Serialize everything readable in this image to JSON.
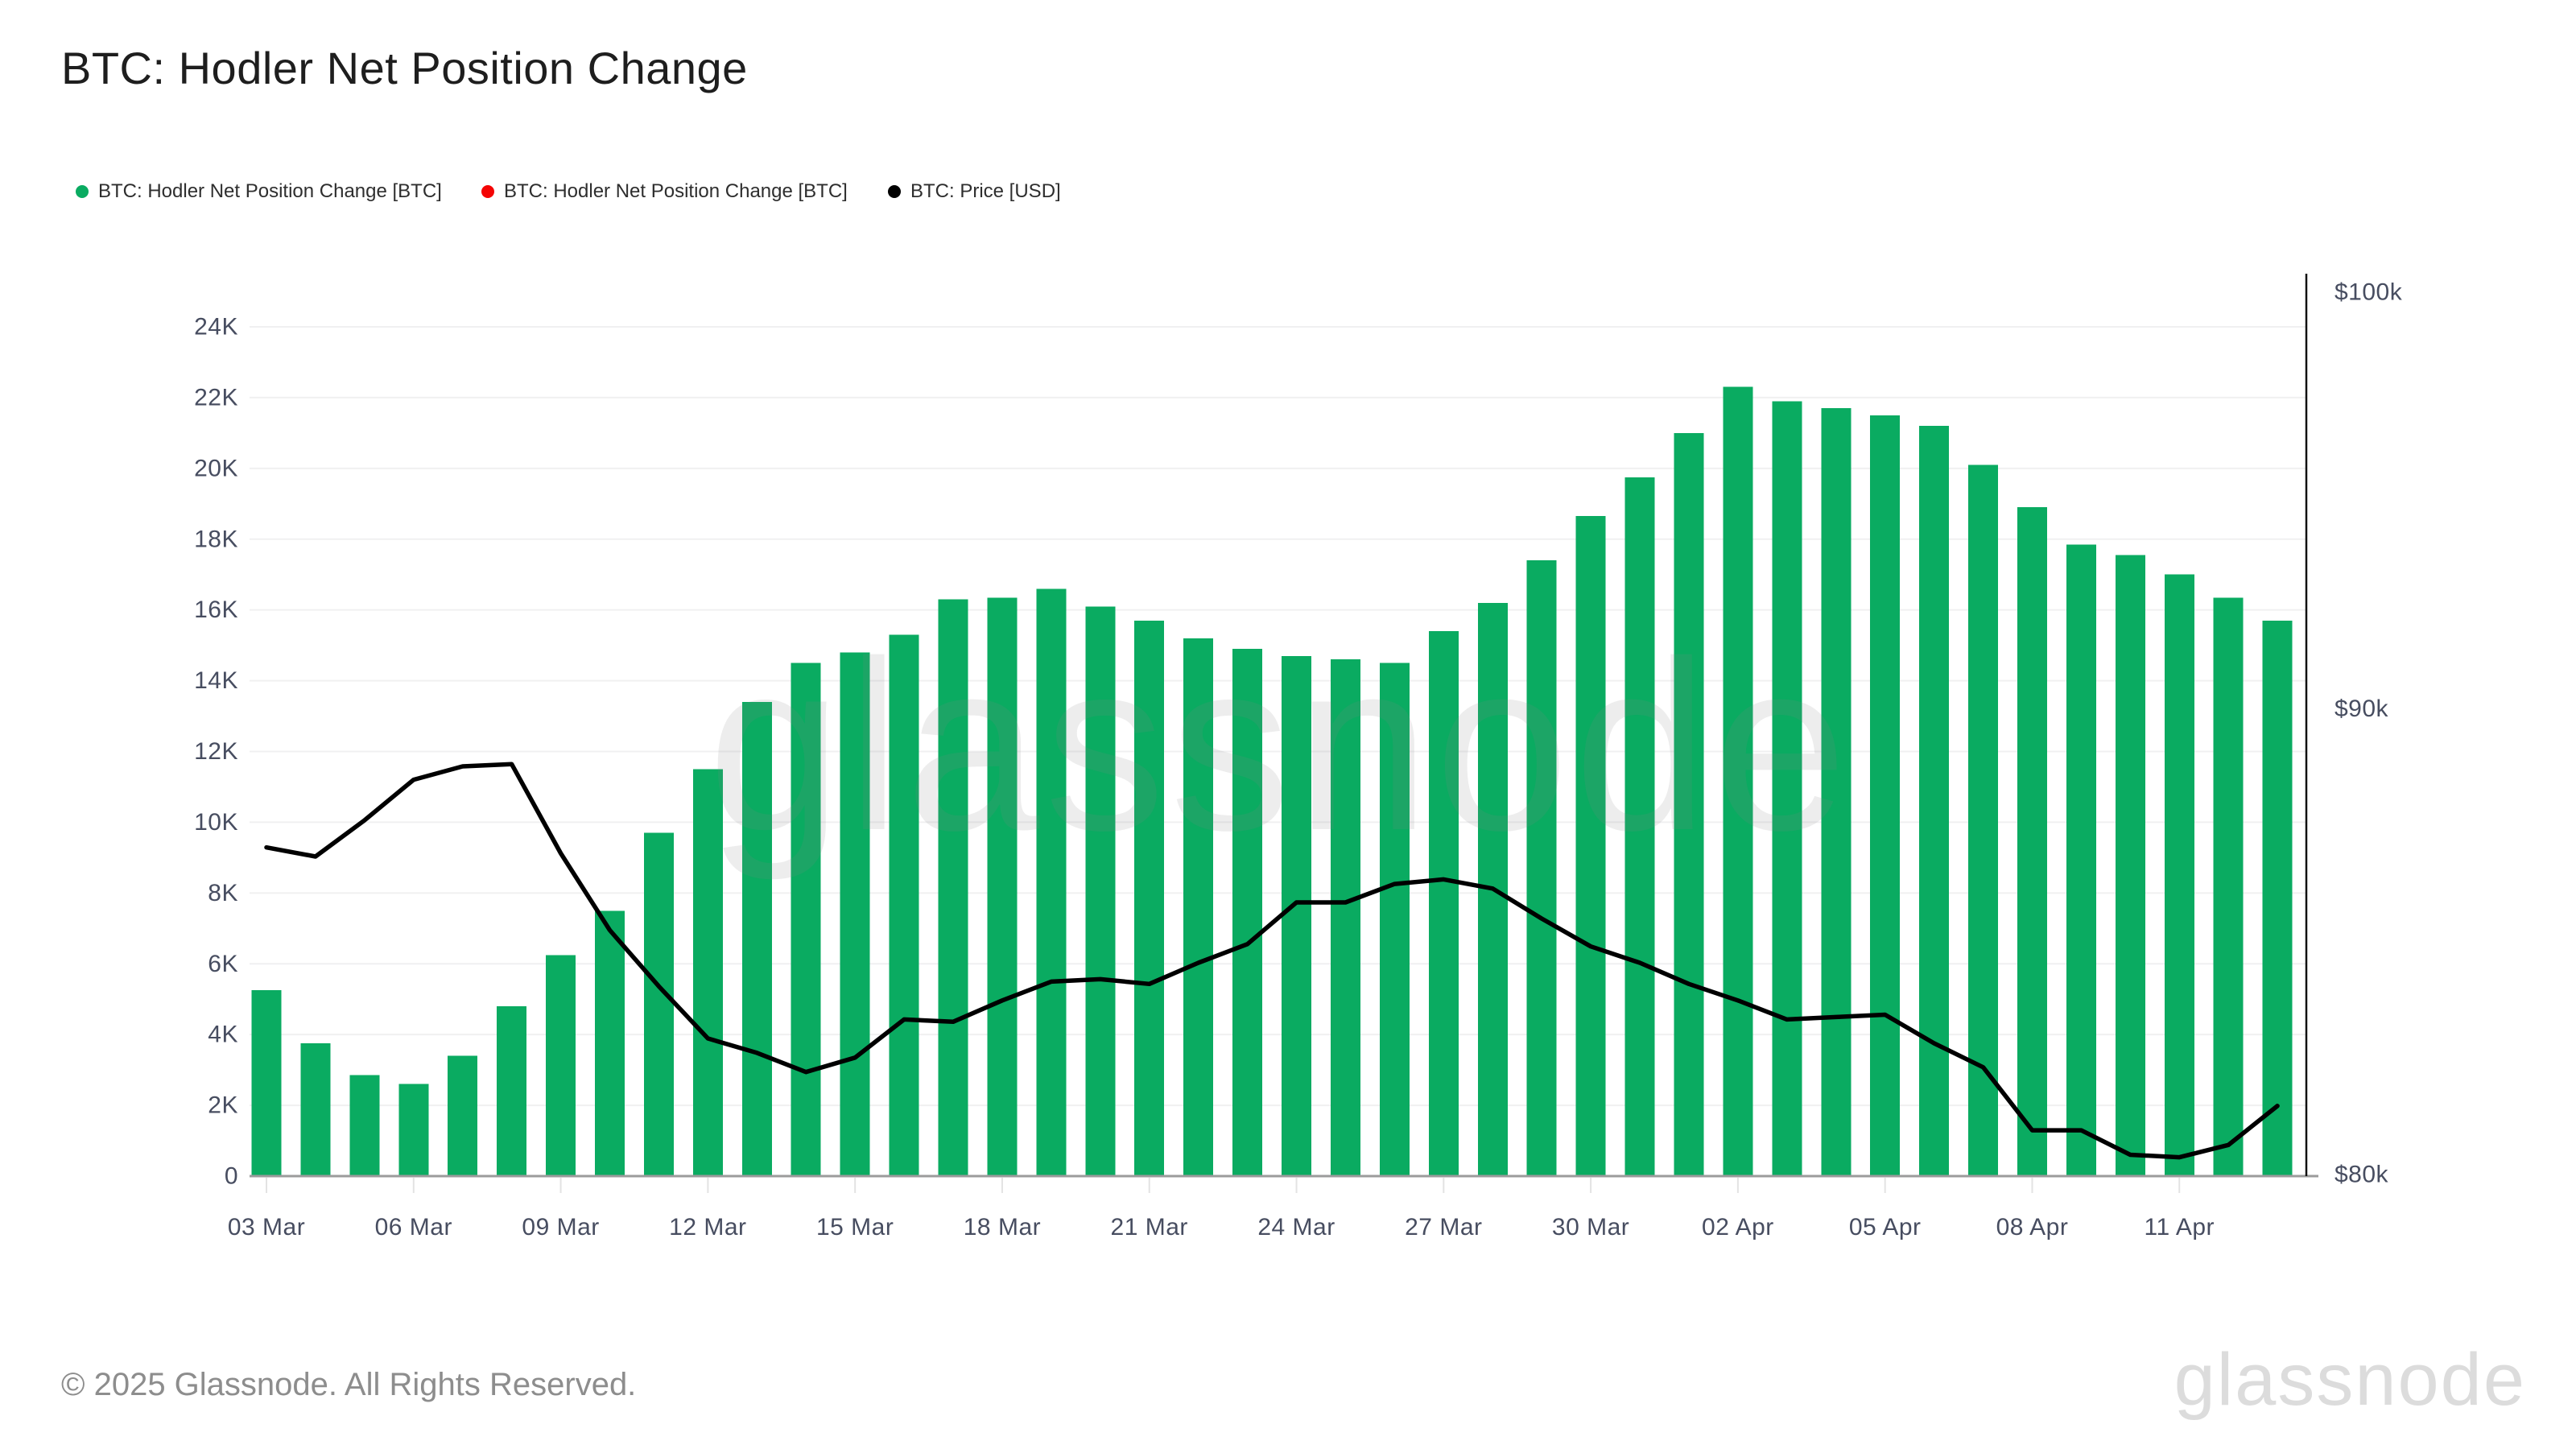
{
  "title": "BTC: Hodler Net Position Change",
  "legend": [
    {
      "label": "BTC: Hodler Net Position Change [BTC]",
      "color": "#0aab61"
    },
    {
      "label": "BTC: Hodler Net Position Change [BTC]",
      "color": "#f40404"
    },
    {
      "label": "BTC: Price [USD]",
      "color": "#000000"
    }
  ],
  "watermark": "glassnode",
  "footer": {
    "copyright": "© 2025 Glassnode. All Rights Reserved.",
    "brand": "glassnode"
  },
  "chart_data": {
    "type": "bar",
    "title": "BTC: Hodler Net Position Change",
    "categories": [
      "03 Mar",
      "04 Mar",
      "05 Mar",
      "06 Mar",
      "07 Mar",
      "08 Mar",
      "09 Mar",
      "10 Mar",
      "11 Mar",
      "12 Mar",
      "13 Mar",
      "14 Mar",
      "15 Mar",
      "16 Mar",
      "17 Mar",
      "18 Mar",
      "19 Mar",
      "20 Mar",
      "21 Mar",
      "22 Mar",
      "23 Mar",
      "24 Mar",
      "25 Mar",
      "26 Mar",
      "27 Mar",
      "28 Mar",
      "29 Mar",
      "30 Mar",
      "31 Mar",
      "01 Apr",
      "02 Apr",
      "03 Apr",
      "04 Apr",
      "05 Apr",
      "06 Apr",
      "07 Apr",
      "08 Apr",
      "09 Apr",
      "10 Apr",
      "11 Apr",
      "12 Apr",
      "13 Apr"
    ],
    "series": [
      {
        "name": "BTC: Hodler Net Position Change [BTC]",
        "type": "bar",
        "unit": "BTC",
        "color": "#0aab61",
        "values": [
          5250,
          3750,
          2850,
          2600,
          3400,
          4800,
          6250,
          7500,
          9700,
          11500,
          13400,
          14500,
          14800,
          15300,
          16300,
          16350,
          16600,
          16100,
          15700,
          15200,
          14900,
          14700,
          14600,
          14500,
          15400,
          16200,
          17400,
          18650,
          19750,
          21000,
          22300,
          21900,
          21700,
          21500,
          21200,
          20100,
          18900,
          17850,
          17550,
          17000,
          16350,
          15700
        ]
      },
      {
        "name": "BTC: Price [USD]",
        "type": "line",
        "unit": "USD",
        "color": "#000000",
        "values": [
          86900,
          86700,
          87500,
          88400,
          88700,
          88750,
          86770,
          85100,
          83900,
          82800,
          82500,
          82100,
          82400,
          83200,
          83150,
          83600,
          84000,
          84050,
          83950,
          84400,
          84800,
          85700,
          85700,
          86100,
          86200,
          86000,
          85350,
          84750,
          84400,
          83950,
          83600,
          83200,
          83250,
          83300,
          82700,
          82200,
          80900,
          80900,
          80400,
          80350,
          80600,
          81400
        ]
      }
    ],
    "left_axis": {
      "title": "",
      "min": 0,
      "max": 24000,
      "scale": "linear",
      "ticks": [
        {
          "label": "0",
          "value": 0
        },
        {
          "label": "2K",
          "value": 2000
        },
        {
          "label": "4K",
          "value": 4000
        },
        {
          "label": "6K",
          "value": 6000
        },
        {
          "label": "8K",
          "value": 8000
        },
        {
          "label": "10K",
          "value": 10000
        },
        {
          "label": "12K",
          "value": 12000
        },
        {
          "label": "14K",
          "value": 14000
        },
        {
          "label": "16K",
          "value": 16000
        },
        {
          "label": "18K",
          "value": 18000
        },
        {
          "label": "20K",
          "value": 20000
        },
        {
          "label": "22K",
          "value": 22000
        },
        {
          "label": "24K",
          "value": 24000
        }
      ]
    },
    "right_axis": {
      "title": "",
      "min": 80000,
      "max": 100000,
      "scale": "log",
      "ticks": [
        {
          "label": "$80k",
          "value": 80000
        },
        {
          "label": "$90k",
          "value": 90000
        },
        {
          "label": "$100k",
          "value": 100000
        }
      ]
    },
    "x_tick_every": 3,
    "x_last_labeled_index": 39,
    "grid": "horizontal"
  }
}
